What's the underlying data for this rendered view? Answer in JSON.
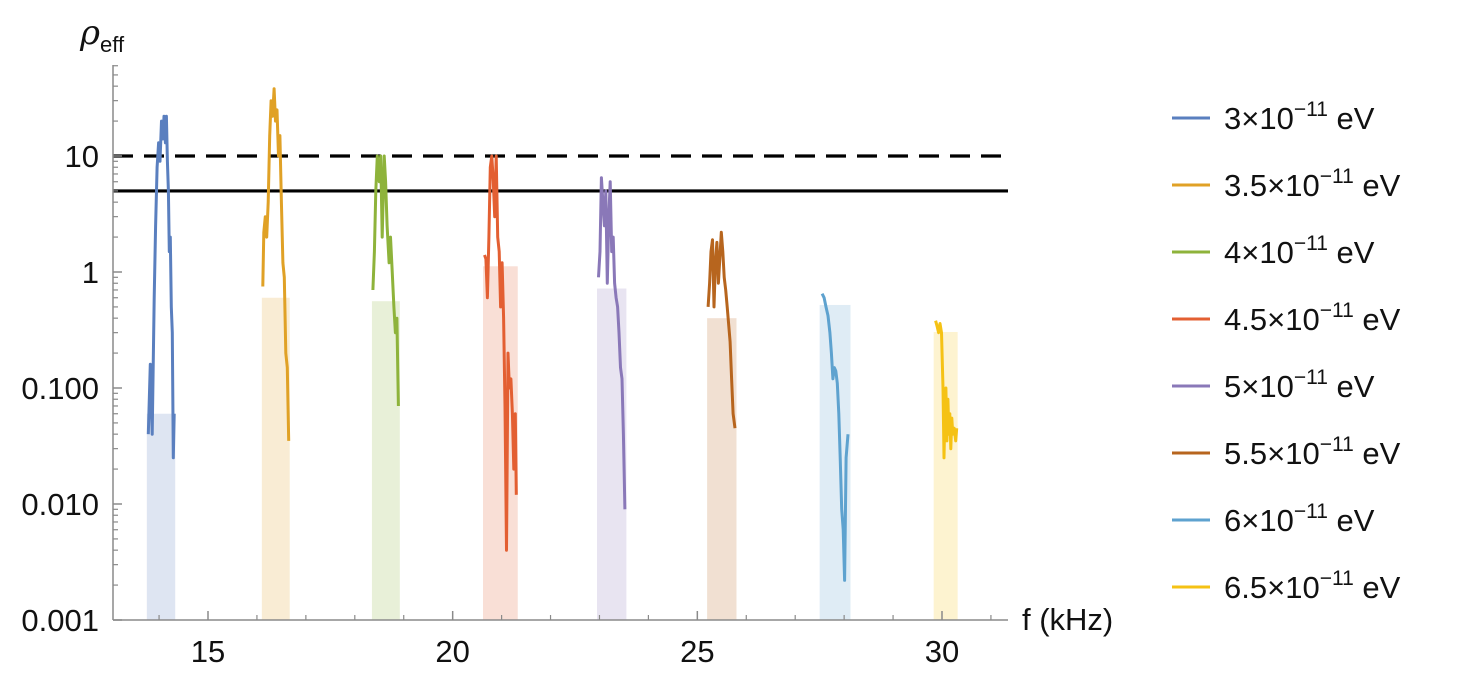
{
  "chart_data": {
    "type": "line",
    "ylabel": "ρ",
    "ylabel_subscript": "eff",
    "xlabel": "f (kHz)",
    "y_scale": "log",
    "ylim": [
      0.001,
      50
    ],
    "xlim": [
      12.9,
      31.5
    ],
    "x_ticks": [
      15,
      20,
      25,
      30
    ],
    "x_tick_labels": [
      "15",
      "20",
      "25",
      "30"
    ],
    "y_ticks": [
      0.001,
      0.01,
      0.1,
      1,
      10
    ],
    "y_tick_labels": [
      "0.001",
      "0.010",
      "0.100",
      "1",
      "10"
    ],
    "reference_lines": [
      {
        "y": 10,
        "style": "dashed",
        "color": "#000000"
      },
      {
        "y": 5,
        "style": "solid",
        "color": "#000000"
      }
    ],
    "legend_position": "right",
    "series": [
      {
        "name": "3×10^−11 eV",
        "legend_mantissa": "3",
        "legend_exponent": "−11",
        "legend_unit": "eV",
        "color": "#5a7fbf",
        "band": [
          13.75,
          14.33
        ],
        "points": [
          [
            13.78,
            0.04
          ],
          [
            13.82,
            0.16
          ],
          [
            13.86,
            0.04
          ],
          [
            13.9,
            0.6
          ],
          [
            13.93,
            2.5
          ],
          [
            13.96,
            8
          ],
          [
            13.99,
            13
          ],
          [
            14.02,
            9
          ],
          [
            14.05,
            20
          ],
          [
            14.08,
            14
          ],
          [
            14.1,
            22
          ],
          [
            14.13,
            13
          ],
          [
            14.15,
            22
          ],
          [
            14.17,
            9
          ],
          [
            14.19,
            5
          ],
          [
            14.21,
            1.5
          ],
          [
            14.23,
            2
          ],
          [
            14.25,
            0.5
          ],
          [
            14.27,
            0.3
          ],
          [
            14.29,
            0.025
          ],
          [
            14.31,
            0.06
          ]
        ]
      },
      {
        "name": "3.5×10^−11 eV",
        "legend_mantissa": "3.5",
        "legend_exponent": "−11",
        "legend_unit": "eV",
        "color": "#e0a126",
        "band": [
          16.1,
          16.67
        ],
        "points": [
          [
            16.12,
            0.75
          ],
          [
            16.14,
            2.2
          ],
          [
            16.17,
            3
          ],
          [
            16.2,
            2
          ],
          [
            16.23,
            4
          ],
          [
            16.26,
            15
          ],
          [
            16.29,
            30
          ],
          [
            16.32,
            22
          ],
          [
            16.35,
            38
          ],
          [
            16.38,
            20
          ],
          [
            16.41,
            25
          ],
          [
            16.44,
            10
          ],
          [
            16.47,
            15
          ],
          [
            16.5,
            4
          ],
          [
            16.53,
            1.2
          ],
          [
            16.56,
            0.9
          ],
          [
            16.59,
            0.2
          ],
          [
            16.62,
            0.15
          ],
          [
            16.65,
            0.035
          ]
        ]
      },
      {
        "name": "4×10^−11 eV",
        "legend_mantissa": "4",
        "legend_exponent": "−11",
        "legend_unit": "eV",
        "color": "#8eb33b",
        "band": [
          18.35,
          18.92
        ],
        "points": [
          [
            18.37,
            0.7
          ],
          [
            18.4,
            1.5
          ],
          [
            18.43,
            5
          ],
          [
            18.46,
            10
          ],
          [
            18.5,
            6
          ],
          [
            18.53,
            10
          ],
          [
            18.56,
            2
          ],
          [
            18.6,
            10
          ],
          [
            18.63,
            6
          ],
          [
            18.66,
            2.5
          ],
          [
            18.7,
            1.2
          ],
          [
            18.73,
            2
          ],
          [
            18.76,
            1.1
          ],
          [
            18.8,
            0.5
          ],
          [
            18.83,
            0.3
          ],
          [
            18.86,
            0.4
          ],
          [
            18.89,
            0.07
          ]
        ]
      },
      {
        "name": "4.5×10^−11 eV",
        "legend_mantissa": "4.5",
        "legend_exponent": "−11",
        "legend_unit": "eV",
        "color": "#e35f32",
        "band": [
          20.62,
          21.33
        ],
        "points": [
          [
            20.65,
            1.4
          ],
          [
            20.68,
            1.3
          ],
          [
            20.71,
            0.6
          ],
          [
            20.74,
            2
          ],
          [
            20.77,
            8
          ],
          [
            20.8,
            10
          ],
          [
            20.83,
            6
          ],
          [
            20.86,
            3
          ],
          [
            20.89,
            10
          ],
          [
            20.92,
            2
          ],
          [
            20.95,
            1.5
          ],
          [
            20.98,
            0.5
          ],
          [
            21.01,
            1.2
          ],
          [
            21.04,
            0.4
          ],
          [
            21.07,
            0.07
          ],
          [
            21.1,
            0.004
          ],
          [
            21.13,
            0.2
          ],
          [
            21.16,
            0.1
          ],
          [
            21.19,
            0.12
          ],
          [
            21.22,
            0.06
          ],
          [
            21.25,
            0.02
          ],
          [
            21.28,
            0.06
          ],
          [
            21.3,
            0.012
          ]
        ]
      },
      {
        "name": "5×10^−11 eV",
        "legend_mantissa": "5",
        "legend_exponent": "−11",
        "legend_unit": "eV",
        "color": "#8a78b8",
        "band": [
          22.95,
          23.55
        ],
        "points": [
          [
            22.98,
            0.9
          ],
          [
            23.01,
            1.5
          ],
          [
            23.04,
            6.5
          ],
          [
            23.07,
            4
          ],
          [
            23.1,
            2.5
          ],
          [
            23.13,
            5
          ],
          [
            23.16,
            0.8
          ],
          [
            23.19,
            3
          ],
          [
            23.22,
            6
          ],
          [
            23.25,
            1.5
          ],
          [
            23.28,
            2
          ],
          [
            23.31,
            0.8
          ],
          [
            23.34,
            0.6
          ],
          [
            23.37,
            0.5
          ],
          [
            23.4,
            0.3
          ],
          [
            23.43,
            0.15
          ],
          [
            23.46,
            0.12
          ],
          [
            23.49,
            0.04
          ],
          [
            23.52,
            0.009
          ]
        ]
      },
      {
        "name": "5.5×10^−11 eV",
        "legend_mantissa": "5.5",
        "legend_exponent": "−11",
        "legend_unit": "eV",
        "color": "#b7651e",
        "band": [
          25.2,
          25.8
        ],
        "points": [
          [
            25.22,
            0.5
          ],
          [
            25.25,
            0.8
          ],
          [
            25.28,
            1.5
          ],
          [
            25.31,
            1.9
          ],
          [
            25.34,
            0.5
          ],
          [
            25.37,
            1.2
          ],
          [
            25.4,
            1.8
          ],
          [
            25.43,
            0.8
          ],
          [
            25.46,
            1.3
          ],
          [
            25.49,
            2.2
          ],
          [
            25.52,
            1.5
          ],
          [
            25.55,
            0.9
          ],
          [
            25.58,
            0.7
          ],
          [
            25.61,
            0.5
          ],
          [
            25.64,
            0.35
          ],
          [
            25.67,
            0.25
          ],
          [
            25.7,
            0.12
          ],
          [
            25.73,
            0.06
          ],
          [
            25.77,
            0.045
          ]
        ]
      },
      {
        "name": "6×10^−11 eV",
        "legend_mantissa": "6",
        "legend_exponent": "−11",
        "legend_unit": "eV",
        "color": "#5ea2cf",
        "band": [
          27.5,
          28.13
        ],
        "points": [
          [
            27.55,
            0.65
          ],
          [
            27.59,
            0.6
          ],
          [
            27.63,
            0.5
          ],
          [
            27.67,
            0.42
          ],
          [
            27.71,
            0.3
          ],
          [
            27.74,
            0.2
          ],
          [
            27.77,
            0.12
          ],
          [
            27.8,
            0.15
          ],
          [
            27.83,
            0.14
          ],
          [
            27.86,
            0.11
          ],
          [
            27.89,
            0.06
          ],
          [
            27.92,
            0.025
          ],
          [
            27.95,
            0.009
          ],
          [
            27.98,
            0.006
          ],
          [
            28.01,
            0.0022
          ],
          [
            28.04,
            0.025
          ],
          [
            28.08,
            0.04
          ]
        ]
      },
      {
        "name": "6.5×10^−11 eV",
        "legend_mantissa": "6.5",
        "legend_exponent": "−11",
        "legend_unit": "eV",
        "color": "#f5c214",
        "band": [
          29.83,
          30.32
        ],
        "points": [
          [
            29.87,
            0.38
          ],
          [
            29.9,
            0.34
          ],
          [
            29.93,
            0.3
          ],
          [
            29.96,
            0.36
          ],
          [
            29.99,
            0.3
          ],
          [
            30.02,
            0.1
          ],
          [
            30.04,
            0.025
          ],
          [
            30.06,
            0.06
          ],
          [
            30.08,
            0.1
          ],
          [
            30.1,
            0.035
          ],
          [
            30.12,
            0.08
          ],
          [
            30.14,
            0.04
          ],
          [
            30.16,
            0.06
          ],
          [
            30.18,
            0.03
          ],
          [
            30.2,
            0.055
          ],
          [
            30.22,
            0.04
          ],
          [
            30.25,
            0.045
          ],
          [
            30.28,
            0.035
          ],
          [
            30.3,
            0.045
          ]
        ]
      }
    ]
  }
}
